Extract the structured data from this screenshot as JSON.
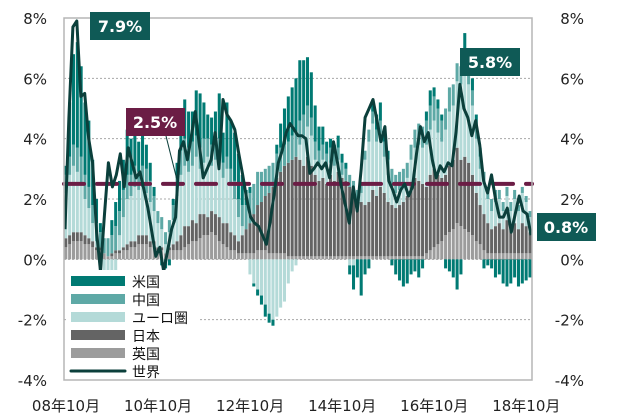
{
  "chart_data": {
    "type": "bar",
    "subtype": "stacked bar + line",
    "x_start": "2008-10",
    "x_unit": "month",
    "ylim": [
      -4,
      8
    ],
    "y_ticks_left": [
      "8%",
      "6%",
      "4%",
      "2%",
      "0%",
      "-2%",
      "-4%"
    ],
    "y_ticks_right": [
      "8%",
      "6%",
      "4%",
      "2%",
      "0%",
      "-2%",
      "-4%"
    ],
    "y_tick_values": [
      8,
      6,
      4,
      2,
      0,
      -2,
      -4
    ],
    "x_tick_labels": [
      "08年10月",
      "10年10月",
      "12年10月",
      "14年10月",
      "16年10月",
      "18年10月"
    ],
    "x_tick_months": [
      0,
      24,
      48,
      72,
      96,
      120
    ],
    "grid": "dotted horizontal",
    "legend_placement": "bottom-left",
    "colors": {
      "us": "#007a73",
      "china": "#5ea9a6",
      "euro": "#b4dad8",
      "japan": "#646464",
      "uk": "#9c9c9c",
      "world": "#0b3f3b",
      "threshold": "#6b1d45"
    },
    "legend": [
      {
        "key": "us",
        "label": "米国",
        "type": "bar"
      },
      {
        "key": "china",
        "label": "中国",
        "type": "bar"
      },
      {
        "key": "euro",
        "label": "ユーロ圏",
        "type": "bar"
      },
      {
        "key": "japan",
        "label": "日本",
        "type": "bar"
      },
      {
        "key": "uk",
        "label": "英国",
        "type": "bar"
      },
      {
        "key": "world",
        "label": "世界",
        "type": "line"
      }
    ],
    "stack_order_bottom_up": [
      "uk",
      "japan",
      "euro",
      "china",
      "us"
    ],
    "series": {
      "uk": [
        0.4,
        0.5,
        0.6,
        0.6,
        0.6,
        0.5,
        0.5,
        0.4,
        0.3,
        0.3,
        0.2,
        0.1,
        0.1,
        0.2,
        0.2,
        0.3,
        0.3,
        0.4,
        0.4,
        0.5,
        0.5,
        0.5,
        0.4,
        0.4,
        0.3,
        0.3,
        0.2,
        0.3,
        0.3,
        0.3,
        0.3,
        0.4,
        0.5,
        0.6,
        0.6,
        0.7,
        0.8,
        0.8,
        0.9,
        0.8,
        0.6,
        0.5,
        0.4,
        0.3,
        0.3,
        0.2,
        0.2,
        0.2,
        0.2,
        0.2,
        0.3,
        0.3,
        0.3,
        0.2,
        0.2,
        0.2,
        0.2,
        0.2,
        0.1,
        0.1,
        0.1,
        0.1,
        0.1,
        0.1,
        0.1,
        0.1,
        0.1,
        0.1,
        0.1,
        0.1,
        0.1,
        0.1,
        0.1,
        0.1,
        0.1,
        0.1,
        0.1,
        0.1,
        0.1,
        0.1,
        0.1,
        0.1,
        0.1,
        0.1,
        0.1,
        0.1,
        0.1,
        0.1,
        0.1,
        0.1,
        0.1,
        0.1,
        0.1,
        0.1,
        0.2,
        0.3,
        0.4,
        0.5,
        0.6,
        0.8,
        0.9,
        1.0,
        1.2,
        1.1,
        1.0,
        0.9,
        0.8,
        0.6,
        0.5,
        0.3,
        0.2,
        0.2,
        0.2,
        0.2,
        0.2,
        0.2,
        0.2,
        0.2,
        0.2,
        0.2,
        0.2,
        0.2
      ],
      "japan": [
        0.3,
        0.3,
        0.3,
        0.3,
        0.3,
        0.3,
        0.2,
        0.2,
        0.1,
        0.1,
        0.0,
        0.0,
        0.1,
        0.1,
        0.1,
        0.1,
        0.2,
        0.2,
        0.2,
        0.3,
        0.3,
        0.3,
        0.2,
        0.2,
        0.1,
        0.1,
        0.0,
        0.1,
        0.2,
        0.3,
        0.5,
        0.7,
        0.6,
        0.7,
        0.6,
        0.8,
        0.7,
        0.6,
        0.7,
        0.7,
        0.8,
        0.7,
        0.8,
        0.6,
        0.5,
        0.4,
        0.6,
        0.8,
        1.0,
        1.3,
        1.5,
        1.6,
        1.8,
        2.0,
        2.2,
        2.5,
        2.7,
        2.9,
        3.1,
        3.2,
        3.3,
        3.2,
        3.0,
        3.3,
        3.0,
        2.7,
        2.5,
        2.6,
        2.4,
        2.7,
        2.5,
        2.8,
        2.6,
        2.5,
        2.3,
        2.1,
        1.9,
        1.8,
        1.7,
        1.8,
        2.2,
        2.0,
        2.3,
        2.1,
        1.8,
        1.7,
        1.6,
        1.7,
        1.8,
        2.0,
        2.4,
        2.6,
        2.5,
        2.4,
        2.2,
        2.5,
        2.6,
        2.3,
        2.1,
        2.0,
        2.2,
        2.3,
        2.5,
        2.2,
        2.4,
        2.3,
        2.0,
        1.6,
        1.3,
        1.2,
        1.0,
        0.8,
        0.9,
        1.0,
        0.8,
        1.1,
        0.9,
        1.0,
        0.8,
        1.0,
        0.9,
        0.7
      ],
      "euro": [
        1.5,
        2.0,
        2.2,
        2.0,
        1.6,
        1.2,
        1.0,
        0.6,
        0.2,
        -0.5,
        -1.0,
        -1.2,
        -0.8,
        -0.5,
        0.5,
        1.0,
        1.5,
        1.5,
        1.8,
        1.5,
        1.6,
        1.4,
        1.3,
        1.0,
        0.8,
        0.6,
        0.3,
        0.5,
        0.8,
        1.5,
        2.0,
        2.0,
        1.8,
        1.8,
        2.2,
        1.5,
        1.7,
        2.0,
        1.5,
        1.8,
        2.0,
        1.5,
        1.8,
        1.6,
        1.2,
        0.8,
        0.3,
        0.0,
        -0.5,
        -0.8,
        -1.0,
        -1.2,
        -1.5,
        -1.8,
        -2.0,
        -1.9,
        -1.6,
        -1.4,
        -0.8,
        -0.4,
        -0.2,
        0.5,
        1.0,
        1.0,
        1.0,
        0.5,
        0.5,
        0.6,
        0.5,
        0.4,
        0.5,
        0.4,
        0.1,
        0.0,
        -0.2,
        -0.2,
        0.0,
        0.3,
        1.5,
        2.0,
        2.2,
        1.8,
        1.8,
        1.2,
        0.9,
        0.6,
        0.5,
        0.5,
        0.6,
        0.6,
        0.8,
        1.0,
        1.2,
        1.2,
        1.4,
        1.5,
        1.6,
        1.4,
        1.2,
        1.5,
        1.8,
        1.8,
        2.2,
        2.5,
        2.8,
        2.6,
        2.3,
        1.8,
        1.2,
        1.0,
        0.8,
        0.6,
        0.8,
        0.8,
        0.6,
        0.8,
        0.5,
        0.8,
        0.6,
        1.0,
        0.8,
        0.5
      ],
      "china": [
        0.6,
        0.6,
        0.7,
        0.8,
        0.9,
        0.8,
        0.7,
        0.6,
        0.6,
        0.5,
        0.5,
        0.6,
        0.6,
        0.8,
        0.8,
        0.9,
        0.8,
        0.7,
        0.7,
        0.6,
        0.7,
        0.8,
        0.7,
        0.5,
        0.4,
        0.4,
        0.4,
        0.4,
        0.5,
        0.6,
        0.8,
        0.9,
        0.8,
        0.8,
        0.7,
        0.7,
        0.8,
        0.6,
        0.7,
        0.6,
        0.6,
        0.5,
        0.4,
        0.5,
        0.6,
        0.6,
        0.7,
        0.8,
        1.0,
        1.0,
        1.1,
        1.0,
        0.9,
        0.9,
        0.8,
        0.8,
        0.8,
        0.7,
        0.7,
        0.8,
        0.8,
        0.8,
        0.7,
        0.7,
        0.6,
        0.6,
        0.5,
        0.5,
        0.5,
        0.5,
        0.4,
        0.4,
        0.4,
        0.4,
        0.4,
        0.4,
        0.3,
        0.3,
        0.3,
        0.4,
        0.4,
        0.4,
        0.4,
        0.5,
        0.5,
        0.6,
        0.6,
        0.6,
        0.5,
        0.5,
        0.5,
        0.6,
        0.7,
        0.7,
        0.8,
        0.8,
        0.8,
        0.8,
        0.7,
        0.7,
        0.8,
        0.7,
        0.6,
        0.6,
        0.7,
        0.7,
        0.5,
        0.5,
        0.4,
        0.4,
        0.4,
        0.4,
        0.4,
        0.3,
        0.3,
        0.3,
        0.3,
        0.3,
        0.2,
        0.2,
        0.2,
        0.2
      ],
      "us": [
        0.3,
        1.8,
        3.0,
        3.5,
        3.0,
        2.4,
        2.2,
        1.5,
        0.8,
        0.3,
        -0.3,
        -0.6,
        0.5,
        0.8,
        1.0,
        1.0,
        1.5,
        1.2,
        1.3,
        1.0,
        1.0,
        0.8,
        0.6,
        0.3,
        0.0,
        -0.2,
        -0.3,
        -0.2,
        0.2,
        0.5,
        1.0,
        1.3,
        1.2,
        1.0,
        1.5,
        1.8,
        1.2,
        0.8,
        0.9,
        1.0,
        1.5,
        1.0,
        1.8,
        1.6,
        1.6,
        1.5,
        1.0,
        0.5,
        0.2,
        -0.1,
        -0.2,
        -0.3,
        -0.4,
        -0.3,
        -0.2,
        0.3,
        0.8,
        1.2,
        1.5,
        1.6,
        1.8,
        2.0,
        1.8,
        1.6,
        1.5,
        1.2,
        0.8,
        0.6,
        0.4,
        0.3,
        0.3,
        0.4,
        0.3,
        0.2,
        -0.3,
        -0.8,
        -0.6,
        -1.2,
        -0.5,
        -0.3,
        0.3,
        0.5,
        0.6,
        0.4,
        0.3,
        -0.2,
        -0.5,
        -0.7,
        -0.9,
        -0.8,
        -0.5,
        -0.4,
        -0.6,
        -0.3,
        0.3,
        0.5,
        0.3,
        0.3,
        0.2,
        -0.3,
        -0.4,
        -0.6,
        -1.0,
        -0.5,
        0.6,
        0.5,
        0.4,
        0.3,
        0.3,
        -0.3,
        -0.2,
        -0.3,
        -0.6,
        -0.5,
        -0.8,
        -0.9,
        -0.8,
        -0.6,
        -0.9,
        -0.8,
        -0.7,
        -0.6
      ],
      "world": [
        1.0,
        4.7,
        7.7,
        7.9,
        5.4,
        5.5,
        4.0,
        3.2,
        0.9,
        -0.4,
        1.5,
        3.2,
        2.4,
        2.8,
        3.5,
        2.4,
        3.7,
        3.2,
        2.7,
        2.9,
        2.3,
        1.7,
        0.9,
        0.1,
        0.4,
        -0.4,
        0.3,
        1.0,
        1.4,
        3.6,
        3.9,
        3.3,
        4.1,
        4.9,
        3.8,
        2.7,
        3.0,
        3.3,
        4.2,
        3.0,
        5.3,
        4.8,
        4.6,
        4.3,
        3.5,
        2.8,
        2.0,
        1.4,
        1.2,
        1.1,
        0.8,
        0.5,
        1.3,
        2.2,
        3.2,
        3.6,
        4.2,
        4.5,
        4.3,
        4.1,
        4.1,
        4.0,
        2.85,
        3.0,
        3.2,
        3.0,
        3.2,
        2.7,
        3.9,
        3.2,
        2.4,
        1.8,
        1.2,
        2.4,
        1.6,
        3.0,
        4.7,
        5.0,
        5.3,
        4.6,
        3.9,
        4.4,
        2.6,
        2.3,
        1.9,
        2.3,
        2.5,
        2.1,
        2.4,
        3.5,
        4.4,
        3.9,
        4.2,
        3.3,
        2.7,
        3.1,
        2.9,
        3.2,
        3.1,
        4.2,
        5.8,
        5.0,
        4.7,
        4.1,
        4.6,
        3.8,
        2.6,
        2.2,
        2.8,
        2.0,
        1.4,
        1.4,
        1.7,
        0.9,
        1.5,
        2.1,
        1.6,
        1.5,
        0.8
      ]
    },
    "threshold": {
      "value": 2.5,
      "label": "2.5%"
    },
    "annotations": [
      {
        "label": "7.9%",
        "value": 7.9,
        "series": "world"
      },
      {
        "label": "5.8%",
        "value": 5.8,
        "series": "world"
      },
      {
        "label": "0.8%",
        "value": 0.8,
        "series": "world"
      }
    ]
  }
}
